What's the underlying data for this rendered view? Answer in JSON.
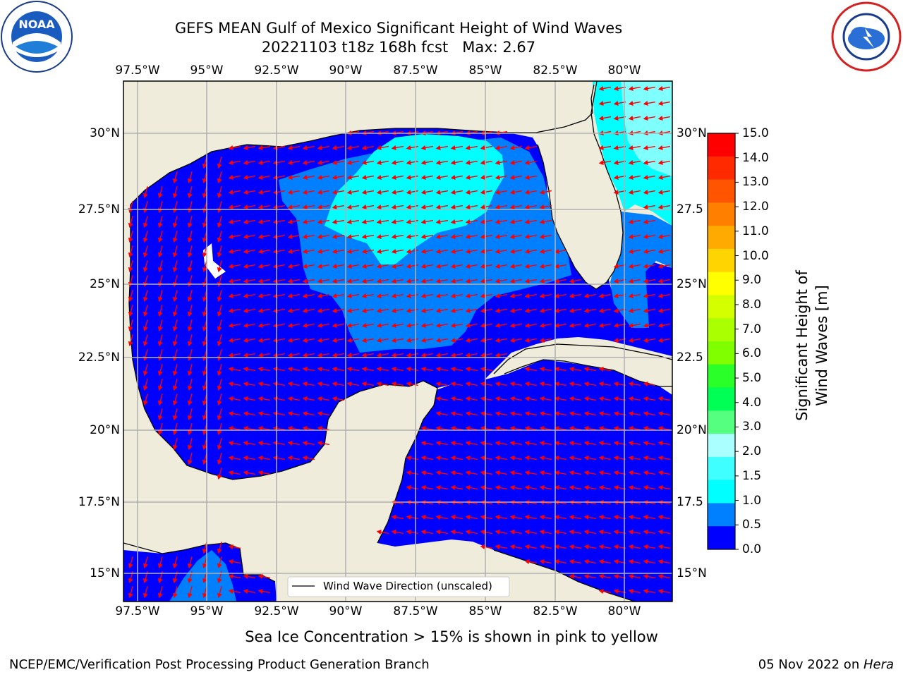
{
  "header": {
    "title_line1": "GEFS MEAN Gulf of Mexico Significant Height of Wind Waves",
    "title_line2": "20221103 t18z 168h fcst   Max: 2.67"
  },
  "logos": {
    "left": "NOAA",
    "right": "NATIONAL WEATHER SERVICE"
  },
  "map": {
    "lon_labels": [
      "97.5°W",
      "95°W",
      "92.5°W",
      "90°W",
      "87.5°W",
      "85°W",
      "82.5°W",
      "80°W"
    ],
    "lat_labels_left": [
      "30°N",
      "27.5°N",
      "25°N",
      "22.5°N",
      "20°N",
      "17.5°N",
      "15°N"
    ],
    "lat_labels_right": [
      "30°N",
      "27.5",
      "25°N",
      "22.5",
      "20°N",
      "17.5",
      "15°N"
    ],
    "legend_label": "Wind Wave Direction (unscaled)",
    "colors": {
      "land": "#efecdc",
      "ocean_low": "#0000ff",
      "ocean_mid": "#0080ff",
      "ocean_high": "#00ffff",
      "ocean_higher": "#80ffff",
      "arrow": "#ff0000",
      "grid": "#b0b0b0"
    }
  },
  "colorbar": {
    "label": "Significant Height of Wind Waves [m]",
    "ticks": [
      "15.0",
      "14.0",
      "13.0",
      "12.0",
      "11.0",
      "10.0",
      "9.0",
      "8.0",
      "7.0",
      "6.0",
      "5.0",
      "4.0",
      "3.0",
      "2.0",
      "1.5",
      "1.0",
      "0.5",
      "0.0"
    ],
    "colors_top_to_bottom": [
      "#ff0000",
      "#ff2a00",
      "#ff5500",
      "#ff8000",
      "#ffaa00",
      "#ffd400",
      "#ffff00",
      "#d4ff00",
      "#aaff00",
      "#80ff00",
      "#2aff2a",
      "#00ff55",
      "#55ff80",
      "#aaffff",
      "#40ffff",
      "#00ffff",
      "#0080ff",
      "#0000ff"
    ]
  },
  "footer": {
    "sea_ice_note": "Sea Ice Concentration > 15% is shown in pink to yellow",
    "branch": "NCEP/EMC/Verification Post Processing Product Generation Branch",
    "date": "05 Nov 2022 on ",
    "machine": "Hera"
  }
}
